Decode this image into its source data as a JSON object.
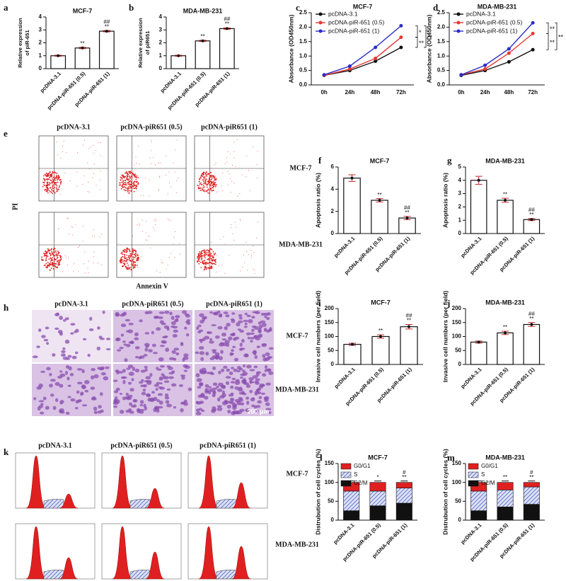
{
  "chart_data": [
    {
      "type": "bar",
      "panel": "a",
      "title": "MCF-7",
      "ylabel": [
        "Relative expression",
        "of piR-651"
      ],
      "categories": [
        "pcDNA-3.1",
        "pcDNA-piR-651 (0.5)",
        "pcDNA-piR-651 (1)"
      ],
      "values": [
        1,
        1.6,
        2.9
      ],
      "errors": [
        0.04,
        0.05,
        0.05
      ],
      "sig_lower": [
        null,
        "**",
        "**"
      ],
      "sig_upper": [
        null,
        null,
        "##"
      ],
      "color": "#ffffff",
      "ylim": [
        0,
        4
      ],
      "yticks": [
        0,
        1,
        2,
        3,
        4
      ]
    },
    {
      "type": "bar",
      "panel": "b",
      "title": "MDA-MB-231",
      "ylabel": [
        "Relative expression",
        "of piR651"
      ],
      "categories": [
        "pcDNA-3.1",
        "pcDNA-piR-651 (0.5)",
        "pcDNA-piR-651 (1)"
      ],
      "values": [
        1,
        2.15,
        3.1
      ],
      "errors": [
        0.04,
        0.05,
        0.05
      ],
      "sig_lower": [
        null,
        "**",
        "**"
      ],
      "sig_upper": [
        null,
        null,
        "##"
      ],
      "color": "#ffffff",
      "ylim": [
        0,
        4
      ],
      "yticks": [
        0,
        1,
        2,
        3,
        4
      ]
    },
    {
      "type": "line",
      "panel": "c",
      "title": "MCF-7",
      "ylabel": "Absorbance (OD450nm)",
      "categories": [
        "0h",
        "24h",
        "48h",
        "72h"
      ],
      "series": [
        {
          "name": "pcDNA-3.1",
          "color": "#111111",
          "values": [
            0.33,
            0.5,
            0.82,
            1.3
          ]
        },
        {
          "name": "pcDNA-piR-651 (0.5)",
          "color": "#e53935",
          "values": [
            0.33,
            0.55,
            0.92,
            1.65
          ]
        },
        {
          "name": "pcDNA-piR-651 (1)",
          "color": "#2b2bc8",
          "values": [
            0.35,
            0.65,
            1.3,
            2.05
          ]
        }
      ],
      "bracket_labels": [
        "*",
        "**",
        "**"
      ],
      "ylim": [
        0,
        2.5
      ],
      "yticks": [
        {
          "value": 0,
          "label": "0.0"
        },
        0.5,
        {
          "value": 1,
          "label": "1.0"
        },
        1.5,
        {
          "value": 2,
          "label": "2.0"
        },
        2.5
      ]
    },
    {
      "type": "line",
      "panel": "d",
      "title": "MDA-MB-231",
      "ylabel": "Absorbance (OD450nm)",
      "categories": [
        "0h",
        "24h",
        "48h",
        "72h"
      ],
      "series": [
        {
          "name": "pcDNA-3.1",
          "color": "#111111",
          "values": [
            0.33,
            0.5,
            0.8,
            1.22
          ]
        },
        {
          "name": "pcDNA-piR-651 (0.5)",
          "color": "#e53935",
          "values": [
            0.35,
            0.55,
            1.1,
            1.78
          ]
        },
        {
          "name": "pcDNA-piR-651 (1)",
          "color": "#2b2bc8",
          "values": [
            0.35,
            0.68,
            1.25,
            2.15
          ]
        }
      ],
      "bracket_labels": [
        "**",
        "**",
        "**"
      ],
      "ylim": [
        0,
        2.5
      ],
      "yticks": [
        {
          "value": 0,
          "label": "0.0"
        },
        0.5,
        {
          "value": 1,
          "label": "1.0"
        },
        1.5,
        {
          "value": 2,
          "label": "2.0"
        },
        2.5
      ]
    },
    {
      "type": "bar",
      "panel": "f",
      "title": "MCF-7",
      "ylabel": "Apoptosis ratio (%)",
      "categories": [
        "pcDNA-3.1",
        "pcDNA-piR-651 (0.5)",
        "pcDNA-piR-651 (1)"
      ],
      "values": [
        5,
        3,
        1.4
      ],
      "errors": [
        0.3,
        0.15,
        0.15
      ],
      "sig_lower": [
        null,
        "**",
        "**"
      ],
      "sig_upper": [
        null,
        null,
        "##"
      ],
      "color": "#ffffff",
      "ylim": [
        0,
        6
      ],
      "yticks": [
        0,
        2,
        4,
        6
      ]
    },
    {
      "type": "bar",
      "panel": "g",
      "title": "MDA-MB-231",
      "ylabel": "Apoptosis ratio (%)",
      "categories": [
        "pcDNA-3.1",
        "pcDNA-piR-651 (0.5)",
        "pcDNA-piR-651 (1)"
      ],
      "values": [
        4,
        2.5,
        1.05
      ],
      "errors": [
        0.3,
        0.15,
        0.08
      ],
      "sig_lower": [
        null,
        "**",
        "**"
      ],
      "sig_upper": [
        null,
        null,
        "##"
      ],
      "color": "#ffffff",
      "ylim": [
        0,
        5
      ],
      "yticks": [
        0,
        1,
        2,
        3,
        4,
        5
      ]
    },
    {
      "type": "bar",
      "panel": "i",
      "title": "MCF-7",
      "ylabel": "Invasive cell numbers (per field)",
      "categories": [
        "pcDNA-3.1",
        "pcDNA-piR-651 (0.5)",
        "pcDNA-piR-651 (1)"
      ],
      "values": [
        72,
        100,
        135
      ],
      "errors": [
        4,
        6,
        8
      ],
      "sig_lower": [
        null,
        "**",
        "**"
      ],
      "sig_upper": [
        null,
        null,
        "##"
      ],
      "color": "#ffffff",
      "ylim": [
        0,
        200
      ],
      "yticks": [
        0,
        50,
        100,
        150,
        200
      ]
    },
    {
      "type": "bar",
      "panel": "j",
      "title": "MDA-MB-231",
      "ylabel": "Invasive cell numbers (per field)",
      "categories": [
        "pcDNA-3.1",
        "pcDNA-piR-651 (0.5)",
        "pcDNA-piR-651 (1)"
      ],
      "values": [
        80,
        113,
        143
      ],
      "errors": [
        4,
        6,
        7
      ],
      "sig_lower": [
        null,
        "**",
        "**"
      ],
      "sig_upper": [
        null,
        null,
        "##"
      ],
      "color": "#ffffff",
      "ylim": [
        0,
        200
      ],
      "yticks": [
        0,
        50,
        100,
        150,
        200
      ]
    },
    {
      "type": "stacked_bar",
      "panel": "l",
      "title": "MCF-7",
      "ylabel": "Distrubution of cell cycles (%)",
      "categories": [
        "pcDNA-3.1",
        "pcDNA-piR-651 (0.5)",
        "pcDNA-piR-651 (1)"
      ],
      "series": [
        {
          "name": "G0/G1",
          "color": "#e02020",
          "values": [
            23,
            23,
            15
          ]
        },
        {
          "name": "S",
          "color": "#5a6bc8",
          "hatch": true,
          "values": [
            52,
            39,
            40
          ]
        },
        {
          "name": "G2/M",
          "color": "#111111",
          "values": [
            25,
            38,
            45
          ]
        }
      ],
      "sig_lower": [
        null,
        "*",
        "**"
      ],
      "sig_upper": [
        null,
        null,
        "#"
      ],
      "ylim": [
        0,
        150
      ],
      "yticks": [
        0,
        50,
        100,
        150
      ]
    },
    {
      "type": "stacked_bar",
      "panel": "m",
      "title": "MDA-MB-231",
      "ylabel": "Distrubution of cell cycles (%)",
      "categories": [
        "pcDNA-3.1",
        "pcDNA-piR-651 (0.5)",
        "pcDNA-piR-651 (1)"
      ],
      "series": [
        {
          "name": "G0/G1",
          "color": "#e02020",
          "values": [
            23,
            20,
            12
          ]
        },
        {
          "name": "S",
          "color": "#5a6bc8",
          "hatch": true,
          "values": [
            52,
            45,
            46
          ]
        },
        {
          "name": "G2/M",
          "color": "#111111",
          "values": [
            25,
            35,
            42
          ]
        }
      ],
      "sig_lower": [
        null,
        "**",
        "**"
      ],
      "sig_upper": [
        null,
        null,
        "#"
      ],
      "ylim": [
        0,
        150
      ],
      "yticks": [
        0,
        50,
        100,
        150
      ]
    }
  ],
  "images": [
    {
      "kind": "flow",
      "panel": "e",
      "columns": [
        "pcDNA-3.1",
        "pcDNA-piR651 (0.5)",
        "pcDNA-piR651 (1)"
      ],
      "rows": [
        "MCF-7",
        "MDA-MB-231"
      ],
      "ylabel": "PI",
      "xlabel": "Annexin V"
    },
    {
      "kind": "micro",
      "panel": "h",
      "columns": [
        "pcDNA-3.1",
        "pcDNA-piR651 (0.5)",
        "pcDNA-piR651 (1)"
      ],
      "rows": [
        "MCF-7",
        "MDA-MB-231"
      ],
      "scale": "200 μm"
    },
    {
      "kind": "hist",
      "panel": "k",
      "columns": [
        "pcDNA-3.1",
        "pcDNA-piR651 (0.5)",
        "pcDNA-piR651 (1)"
      ],
      "rows": [
        "MCF-7",
        "MDA-MB-231"
      ]
    }
  ]
}
